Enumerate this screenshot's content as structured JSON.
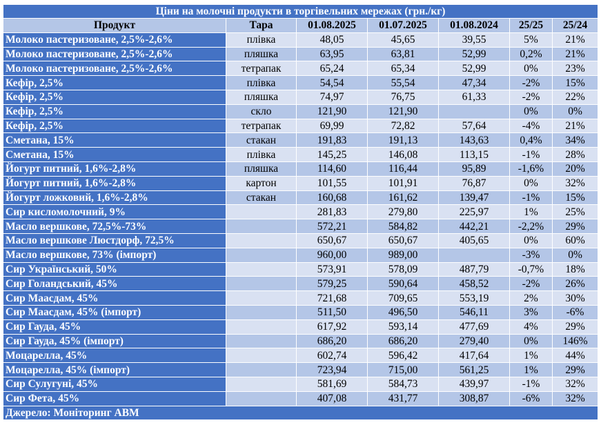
{
  "title": "Ціни на молочні продукти в торгівельних мережах (грн./кг)",
  "headers": [
    "Продукт",
    "Тара",
    "01.08.2025",
    "01.07.2025",
    "01.08.2024",
    "25/25",
    "25/24"
  ],
  "rows": [
    {
      "product": "Молоко пастеризоване, 2,5%-2,6%",
      "pack": "плівка",
      "d1": "48,05",
      "d2": "45,65",
      "d3": "39,55",
      "c1": "5%",
      "c2": "21%"
    },
    {
      "product": "Молоко пастеризоване, 2,5%-2,6%",
      "pack": "пляшка",
      "d1": "63,95",
      "d2": "63,81",
      "d3": "52,99",
      "c1": "0,2%",
      "c2": "21%"
    },
    {
      "product": "Молоко пастеризоване, 2,5%-2,6%",
      "pack": "тетрапак",
      "d1": "65,24",
      "d2": "65,34",
      "d3": "52,99",
      "c1": "0%",
      "c2": "23%"
    },
    {
      "product": "Кефір, 2,5%",
      "pack": "плівка",
      "d1": "54,54",
      "d2": "55,54",
      "d3": "47,34",
      "c1": "-2%",
      "c2": "15%"
    },
    {
      "product": "Кефір, 2,5%",
      "pack": "пляшка",
      "d1": "74,97",
      "d2": "76,75",
      "d3": "61,33",
      "c1": "-2%",
      "c2": "22%"
    },
    {
      "product": "Кефір, 2,5%",
      "pack": "скло",
      "d1": "121,90",
      "d2": "121,90",
      "d3": "",
      "c1": "0%",
      "c2": "0%"
    },
    {
      "product": "Кефір, 2,5%",
      "pack": "тетрапак",
      "d1": "69,99",
      "d2": "72,82",
      "d3": "57,64",
      "c1": "-4%",
      "c2": "21%"
    },
    {
      "product": "Сметана, 15%",
      "pack": "стакан",
      "d1": "191,83",
      "d2": "191,13",
      "d3": "143,63",
      "c1": "0,4%",
      "c2": "34%"
    },
    {
      "product": "Сметана, 15%",
      "pack": "плівка",
      "d1": "145,25",
      "d2": "146,08",
      "d3": "113,15",
      "c1": "-1%",
      "c2": "28%"
    },
    {
      "product": "Йогурт питний, 1,6%-2,8%",
      "pack": "пляшка",
      "d1": "114,60",
      "d2": "116,44",
      "d3": "95,89",
      "c1": "-1,6%",
      "c2": "20%"
    },
    {
      "product": "Йогурт питний, 1,6%-2,8%",
      "pack": "картон",
      "d1": "101,55",
      "d2": "101,91",
      "d3": "76,87",
      "c1": "0%",
      "c2": "32%"
    },
    {
      "product": "Йогурт ложковий, 1,6%-2,8%",
      "pack": "стакан",
      "d1": "160,68",
      "d2": "161,62",
      "d3": "139,47",
      "c1": "-1%",
      "c2": "15%"
    },
    {
      "product": "Сир кисломолочний, 9%",
      "pack": "",
      "d1": "281,83",
      "d2": "279,80",
      "d3": "225,97",
      "c1": "1%",
      "c2": "25%"
    },
    {
      "product": "Масло вершкове, 72,5%-73%",
      "pack": "",
      "d1": "572,21",
      "d2": "584,82",
      "d3": "442,21",
      "c1": "-2,2%",
      "c2": "29%"
    },
    {
      "product": "Масло вершкове Люстдорф, 72,5%",
      "pack": "",
      "d1": "650,67",
      "d2": "650,67",
      "d3": "405,65",
      "c1": "0%",
      "c2": "60%"
    },
    {
      "product": "Масло вершкове, 73% (імпорт)",
      "pack": "",
      "d1": "960,00",
      "d2": "989,00",
      "d3": "",
      "c1": "-3%",
      "c2": "0%"
    },
    {
      "product": "Сир Український, 50%",
      "pack": "",
      "d1": "573,91",
      "d2": "578,09",
      "d3": "487,79",
      "c1": "-0,7%",
      "c2": "18%"
    },
    {
      "product": "Сир Голандський, 45%",
      "pack": "",
      "d1": "579,25",
      "d2": "590,64",
      "d3": "458,52",
      "c1": "-2%",
      "c2": "26%"
    },
    {
      "product": "Сир Маасдам, 45%",
      "pack": "",
      "d1": "721,68",
      "d2": "709,65",
      "d3": "553,19",
      "c1": "2%",
      "c2": "30%"
    },
    {
      "product": "Сир Маасдам, 45% (імпорт)",
      "pack": "",
      "d1": "511,50",
      "d2": "496,50",
      "d3": "546,11",
      "c1": "3%",
      "c2": "-6%"
    },
    {
      "product": "Сир Гауда, 45%",
      "pack": "",
      "d1": "617,92",
      "d2": "593,14",
      "d3": "477,69",
      "c1": "4%",
      "c2": "29%"
    },
    {
      "product": "Сир Гауда, 45% (імпорт)",
      "pack": "",
      "d1": "686,20",
      "d2": "686,20",
      "d3": "279,40",
      "c1": "0%",
      "c2": "146%"
    },
    {
      "product": "Моцарелла, 45%",
      "pack": "",
      "d1": "602,74",
      "d2": "596,42",
      "d3": "417,64",
      "c1": "1%",
      "c2": "44%"
    },
    {
      "product": "Моцарелла, 45% (імпорт)",
      "pack": "",
      "d1": "723,94",
      "d2": "715,00",
      "d3": "561,25",
      "c1": "1%",
      "c2": "29%"
    },
    {
      "product": "Сир Сулугуні, 45%",
      "pack": "",
      "d1": "581,69",
      "d2": "584,73",
      "d3": "439,97",
      "c1": "-1%",
      "c2": "32%"
    },
    {
      "product": "Сир Фета, 45%",
      "pack": "",
      "d1": "407,08",
      "d2": "431,77",
      "d3": "308,87",
      "c1": "-6%",
      "c2": "32%"
    }
  ],
  "footer": "Джерело: Моніторинг АВМ",
  "colors": {
    "header_blue": "#4472c4",
    "row_light": "#d9e1f2",
    "row_mid": "#b4c6e7"
  }
}
